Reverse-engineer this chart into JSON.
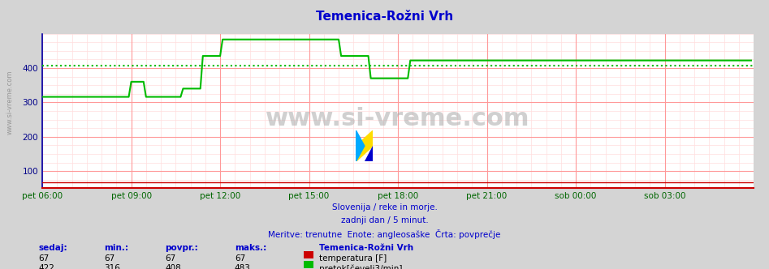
{
  "title": "Temenica-Rožni Vrh",
  "title_color": "#0000cc",
  "bg_color": "#d4d4d4",
  "plot_bg_color": "#ffffff",
  "grid_color_major": "#ff9999",
  "grid_color_minor": "#ffdddd",
  "x_label_color": "#006600",
  "y_label_color": "#000088",
  "xlim": [
    0,
    288
  ],
  "ylim": [
    50,
    500
  ],
  "yticks": [
    100,
    200,
    300,
    400
  ],
  "xtick_labels": [
    "pet 06:00",
    "pet 09:00",
    "pet 12:00",
    "pet 15:00",
    "pet 18:00",
    "pet 21:00",
    "sob 00:00",
    "sob 03:00"
  ],
  "xtick_positions": [
    0,
    36,
    72,
    108,
    144,
    180,
    216,
    252
  ],
  "flow_color": "#00bb00",
  "temp_color": "#cc0000",
  "avg_flow": 408,
  "avg_temp": 67,
  "watermark": "www.si-vreme.com",
  "footer_lines": [
    "Slovenija / reke in morje.",
    "zadnji dan / 5 minut.",
    "Meritve: trenutne  Enote: angleosaške  Črta: povprečje"
  ],
  "footer_color": "#0000cc",
  "legend_title": "Temenica-Rožni Vrh",
  "legend_temp_label": "temperatura [F]",
  "legend_flow_label": "pretok[čevelj3/min]",
  "stats_headers": [
    "sedaj:",
    "min.:",
    "povpr.:",
    "maks.:"
  ],
  "stats_temp": [
    67,
    67,
    67,
    67
  ],
  "stats_flow": [
    422,
    316,
    408,
    483
  ],
  "flow_data": [
    316,
    316,
    316,
    316,
    316,
    316,
    316,
    316,
    316,
    316,
    316,
    316,
    316,
    316,
    316,
    316,
    316,
    316,
    316,
    316,
    316,
    316,
    316,
    316,
    316,
    316,
    316,
    316,
    316,
    316,
    316,
    316,
    316,
    316,
    316,
    316,
    360,
    360,
    360,
    360,
    360,
    360,
    316,
    316,
    316,
    316,
    316,
    316,
    316,
    316,
    316,
    316,
    316,
    316,
    316,
    316,
    316,
    340,
    340,
    340,
    340,
    340,
    340,
    340,
    340,
    435,
    435,
    435,
    435,
    435,
    435,
    435,
    435,
    483,
    483,
    483,
    483,
    483,
    483,
    483,
    483,
    483,
    483,
    483,
    483,
    483,
    483,
    483,
    483,
    483,
    483,
    483,
    483,
    483,
    483,
    483,
    483,
    483,
    483,
    483,
    483,
    483,
    483,
    483,
    483,
    483,
    483,
    483,
    483,
    483,
    483,
    483,
    483,
    483,
    483,
    483,
    483,
    483,
    483,
    483,
    483,
    435,
    435,
    435,
    435,
    435,
    435,
    435,
    435,
    435,
    435,
    435,
    435,
    370,
    370,
    370,
    370,
    370,
    370,
    370,
    370,
    370,
    370,
    370,
    370,
    370,
    370,
    370,
    370,
    422,
    422,
    422,
    422,
    422,
    422,
    422,
    422,
    422,
    422,
    422,
    422,
    422,
    422,
    422,
    422,
    422,
    422,
    422,
    422,
    422,
    422,
    422,
    422,
    422,
    422,
    422,
    422,
    422,
    422,
    422,
    422,
    422,
    422,
    422,
    422,
    422,
    422,
    422,
    422,
    422,
    422,
    422,
    422,
    422,
    422,
    422,
    422,
    422,
    422,
    422,
    422,
    422,
    422,
    422,
    422,
    422,
    422,
    422,
    422,
    422,
    422,
    422,
    422,
    422,
    422,
    422,
    422,
    422,
    422,
    422,
    422,
    422,
    422,
    422,
    422,
    422,
    422,
    422,
    422,
    422,
    422,
    422,
    422,
    422,
    422,
    422,
    422,
    422,
    422,
    422,
    422,
    422,
    422,
    422,
    422
  ]
}
